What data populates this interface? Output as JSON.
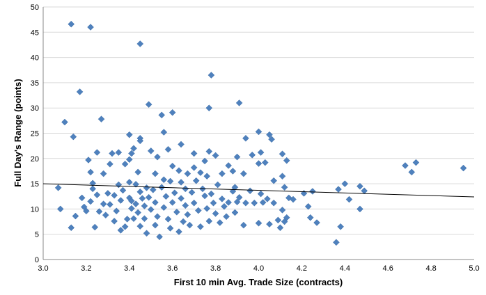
{
  "chart_data": {
    "type": "scatter",
    "title": "",
    "xlabel": "First 10 min Avg. Trade Size (contracts)",
    "ylabel": "Full Day's Range (points)",
    "xlim": [
      3.0,
      5.0
    ],
    "ylim": [
      0,
      50
    ],
    "x_ticks": [
      "3.0",
      "3.2",
      "3.4",
      "3.6",
      "3.8",
      "4.0",
      "4.2",
      "4.4",
      "4.6",
      "4.8",
      "5.0"
    ],
    "y_ticks": [
      "0",
      "5",
      "10",
      "15",
      "20",
      "25",
      "30",
      "35",
      "40",
      "45",
      "50"
    ],
    "grid": "horizontal",
    "legend": "none",
    "marker_color": "#4f81bd",
    "trendline": {
      "x": [
        3.0,
        5.0
      ],
      "y": [
        15.0,
        12.4
      ],
      "color": "#000000"
    },
    "points": [
      [
        3.13,
        46.6
      ],
      [
        3.22,
        46.0
      ],
      [
        3.45,
        42.7
      ],
      [
        3.78,
        36.5
      ],
      [
        3.17,
        33.2
      ],
      [
        3.49,
        30.7
      ],
      [
        3.91,
        31.0
      ],
      [
        3.77,
        30.0
      ],
      [
        3.55,
        28.6
      ],
      [
        3.6,
        29.1
      ],
      [
        3.1,
        27.2
      ],
      [
        3.27,
        27.8
      ],
      [
        3.56,
        25.2
      ],
      [
        3.14,
        24.3
      ],
      [
        3.4,
        24.7
      ],
      [
        3.45,
        24.0
      ],
      [
        3.94,
        24.0
      ],
      [
        4.0,
        25.3
      ],
      [
        4.05,
        24.7
      ],
      [
        4.07,
        15.6
      ],
      [
        3.21,
        19.7
      ],
      [
        3.25,
        21.2
      ],
      [
        3.32,
        21.0
      ],
      [
        3.35,
        21.2
      ],
      [
        3.41,
        21.0
      ],
      [
        3.42,
        22.0
      ],
      [
        3.45,
        23.5
      ],
      [
        3.5,
        21.5
      ],
      [
        3.53,
        20.3
      ],
      [
        3.58,
        21.8
      ],
      [
        3.64,
        22.8
      ],
      [
        3.7,
        21.0
      ],
      [
        3.75,
        19.5
      ],
      [
        3.77,
        21.4
      ],
      [
        3.8,
        20.6
      ],
      [
        3.9,
        20.3
      ],
      [
        3.93,
        17.0
      ],
      [
        3.97,
        20.7
      ],
      [
        4.01,
        21.2
      ],
      [
        4.03,
        19.2
      ],
      [
        4.06,
        23.8
      ],
      [
        4.11,
        20.9
      ],
      [
        4.13,
        19.6
      ],
      [
        4.11,
        16.5
      ],
      [
        4.12,
        14.3
      ],
      [
        3.22,
        17.3
      ],
      [
        3.28,
        17.0
      ],
      [
        3.31,
        18.9
      ],
      [
        3.38,
        18.9
      ],
      [
        3.4,
        19.8
      ],
      [
        3.44,
        17.3
      ],
      [
        3.52,
        17.0
      ],
      [
        3.56,
        15.8
      ],
      [
        3.6,
        18.5
      ],
      [
        3.63,
        17.6
      ],
      [
        3.67,
        17.0
      ],
      [
        3.7,
        18.2
      ],
      [
        3.73,
        17.2
      ],
      [
        3.76,
        16.5
      ],
      [
        3.83,
        17.0
      ],
      [
        3.86,
        18.6
      ],
      [
        3.88,
        17.5
      ],
      [
        3.89,
        14.3
      ],
      [
        4.0,
        19.0
      ],
      [
        3.07,
        14.2
      ],
      [
        3.08,
        10.0
      ],
      [
        3.15,
        8.6
      ],
      [
        3.13,
        6.3
      ],
      [
        3.18,
        12.2
      ],
      [
        3.19,
        10.4
      ],
      [
        3.2,
        9.6
      ],
      [
        3.22,
        11.5
      ],
      [
        3.23,
        15.1
      ],
      [
        3.23,
        14.0
      ],
      [
        3.25,
        12.8
      ],
      [
        3.24,
        6.4
      ],
      [
        3.26,
        9.5
      ],
      [
        3.28,
        11.0
      ],
      [
        3.29,
        8.8
      ],
      [
        3.3,
        13.1
      ],
      [
        3.31,
        10.9
      ],
      [
        3.33,
        12.7
      ],
      [
        3.33,
        7.6
      ],
      [
        3.34,
        9.6
      ],
      [
        3.35,
        14.8
      ],
      [
        3.36,
        11.7
      ],
      [
        3.36,
        5.8
      ],
      [
        3.37,
        13.7
      ],
      [
        3.38,
        6.5
      ],
      [
        3.39,
        8.0
      ],
      [
        3.4,
        15.3
      ],
      [
        3.4,
        12.2
      ],
      [
        3.41,
        11.6
      ],
      [
        3.41,
        10.1
      ],
      [
        3.42,
        8.1
      ],
      [
        3.43,
        14.9
      ],
      [
        3.43,
        11.0
      ],
      [
        3.44,
        9.3
      ],
      [
        3.45,
        13.4
      ],
      [
        3.45,
        6.6
      ],
      [
        3.46,
        12.1
      ],
      [
        3.47,
        10.6
      ],
      [
        3.47,
        8.1
      ],
      [
        3.48,
        14.2
      ],
      [
        3.48,
        5.2
      ],
      [
        3.49,
        12.3
      ],
      [
        3.5,
        9.9
      ],
      [
        3.51,
        13.8
      ],
      [
        3.52,
        11.3
      ],
      [
        3.52,
        6.8
      ],
      [
        3.53,
        8.5
      ],
      [
        3.54,
        4.5
      ],
      [
        3.55,
        14.3
      ],
      [
        3.56,
        10.3
      ],
      [
        3.57,
        12.5
      ],
      [
        3.58,
        8.0
      ],
      [
        3.59,
        15.5
      ],
      [
        3.59,
        6.2
      ],
      [
        3.6,
        11.3
      ],
      [
        3.61,
        13.2
      ],
      [
        3.62,
        9.4
      ],
      [
        3.63,
        5.5
      ],
      [
        3.64,
        15.3
      ],
      [
        3.64,
        12.1
      ],
      [
        3.65,
        7.5
      ],
      [
        3.66,
        10.7
      ],
      [
        3.66,
        14.0
      ],
      [
        3.67,
        8.9
      ],
      [
        3.68,
        6.8
      ],
      [
        3.69,
        13.3
      ],
      [
        3.7,
        11.2
      ],
      [
        3.71,
        15.6
      ],
      [
        3.72,
        9.7
      ],
      [
        3.73,
        6.5
      ],
      [
        3.74,
        14.0
      ],
      [
        3.75,
        12.6
      ],
      [
        3.76,
        10.1
      ],
      [
        3.77,
        7.6
      ],
      [
        3.78,
        13.0
      ],
      [
        3.79,
        11.2
      ],
      [
        3.8,
        9.1
      ],
      [
        3.81,
        14.8
      ],
      [
        3.82,
        7.3
      ],
      [
        3.83,
        12.0
      ],
      [
        3.84,
        10.5
      ],
      [
        3.85,
        8.5
      ],
      [
        3.86,
        11.3
      ],
      [
        3.88,
        13.5
      ],
      [
        3.89,
        9.3
      ],
      [
        3.9,
        11.4
      ],
      [
        3.91,
        12.3
      ],
      [
        3.93,
        6.8
      ],
      [
        3.94,
        11.2
      ],
      [
        3.96,
        13.6
      ],
      [
        3.98,
        11.2
      ],
      [
        4.0,
        7.2
      ],
      [
        4.01,
        13.0
      ],
      [
        4.02,
        11.3
      ],
      [
        4.04,
        12.0
      ],
      [
        4.05,
        7.0
      ],
      [
        4.07,
        11.2
      ],
      [
        4.09,
        7.8
      ],
      [
        4.1,
        6.3
      ],
      [
        4.11,
        9.8
      ],
      [
        4.12,
        7.5
      ],
      [
        4.13,
        8.3
      ],
      [
        4.14,
        12.2
      ],
      [
        4.16,
        11.9
      ],
      [
        4.21,
        13.1
      ],
      [
        4.23,
        10.5
      ],
      [
        4.24,
        8.3
      ],
      [
        4.25,
        13.5
      ],
      [
        4.27,
        7.3
      ],
      [
        4.36,
        3.4
      ],
      [
        4.37,
        13.9
      ],
      [
        4.38,
        6.5
      ],
      [
        4.4,
        15.0
      ],
      [
        4.42,
        11.9
      ],
      [
        4.47,
        14.5
      ],
      [
        4.47,
        10.0
      ],
      [
        4.49,
        13.6
      ],
      [
        4.68,
        18.6
      ],
      [
        4.71,
        17.3
      ],
      [
        4.73,
        19.2
      ],
      [
        4.95,
        18.1
      ]
    ]
  }
}
